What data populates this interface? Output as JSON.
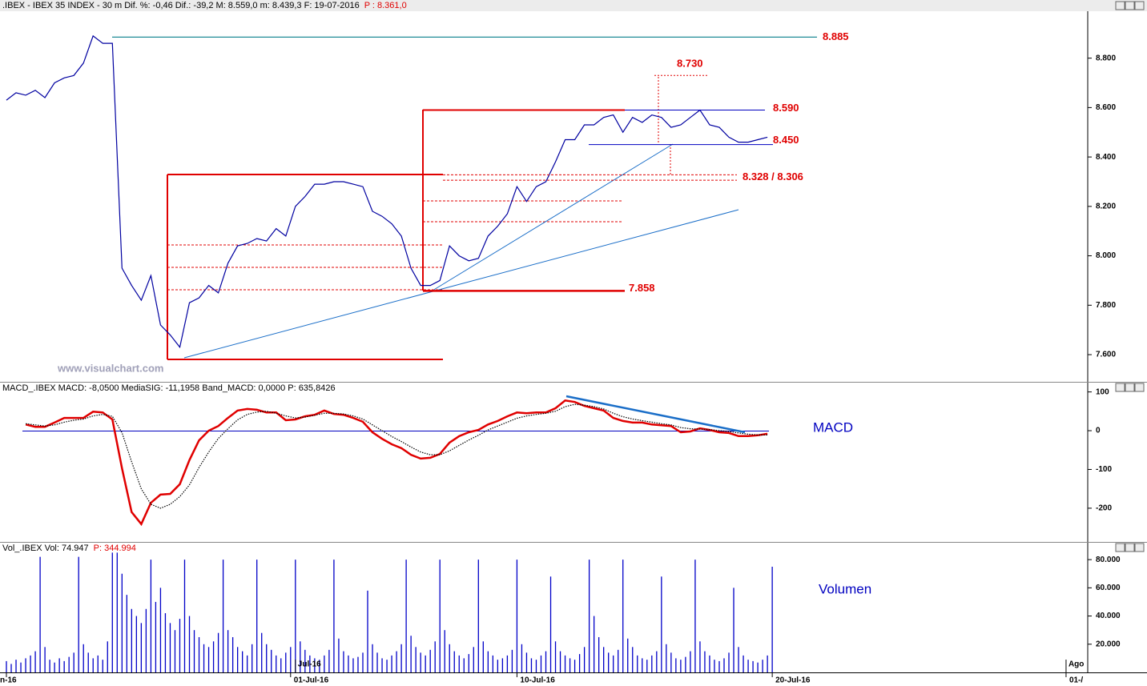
{
  "chart_data": [
    {
      "type": "line",
      "title": ".IBEX - IBEX 35 INDEX -  30 m  Dif. %: -0,46  Dif.: -39,2  M: 8.559,0  m: 8.439,3  F: 19-07-2016",
      "subtitle": "P : 8.361,0",
      "watermark": "www.visualchart.com",
      "xlim": [
        0,
        112
      ],
      "ylim": [
        7490,
        8990
      ],
      "yticks": [
        {
          "value": 8800,
          "label": "8.800"
        },
        {
          "value": 8600,
          "label": "8.600"
        },
        {
          "value": 8400,
          "label": "8.400"
        },
        {
          "value": 8200,
          "label": "8.200"
        },
        {
          "value": 8000,
          "label": "8.000"
        },
        {
          "value": 7800,
          "label": "7.800"
        },
        {
          "value": 7600,
          "label": "7.600"
        }
      ],
      "series": [
        {
          "color": "#0000a0",
          "values": [
            8630,
            8660,
            8650,
            8670,
            8640,
            8700,
            8720,
            8730,
            8780,
            8890,
            8860,
            8860,
            7950,
            7880,
            7820,
            7920,
            7720,
            7680,
            7630,
            7810,
            7830,
            7880,
            7850,
            7970,
            8040,
            8050,
            8070,
            8060,
            8110,
            8080,
            8200,
            8240,
            8290,
            8290,
            8300,
            8300,
            8290,
            8280,
            8180,
            8160,
            8130,
            8080,
            7950,
            7880,
            7880,
            7900,
            8040,
            8000,
            7980,
            7990,
            8080,
            8120,
            8170,
            8280,
            8220,
            8280,
            8300,
            8380,
            8470,
            8470,
            8530,
            8530,
            8560,
            8570,
            8500,
            8560,
            8540,
            8570,
            8560,
            8520,
            8530,
            8560,
            8590,
            8530,
            8520,
            8480,
            8460,
            8460,
            8470,
            8480
          ]
        }
      ],
      "levels": [
        {
          "value": 8885,
          "label": "8.885"
        },
        {
          "value": 8730,
          "label": "8.730"
        },
        {
          "value": 8590,
          "label": "8.590"
        },
        {
          "value": 8450,
          "label": "8.450"
        },
        {
          "value": 7858,
          "label": "7.858"
        }
      ],
      "level_pair": {
        "values": [
          8328,
          8306
        ],
        "label": "8.328 / 8.306"
      }
    },
    {
      "type": "line",
      "title": "MACD_.IBEX MACD: -8,0500  MediaSIG: -11,1958  Band_MACD: 0,0000  P: 635,8426",
      "label": "MACD",
      "xlim": [
        0,
        112
      ],
      "ylim": [
        -287,
        124
      ],
      "yticks": [
        100,
        0,
        -100,
        -200
      ],
      "series": [
        {
          "color": "#e00000",
          "values": [
            null,
            null,
            16,
            10,
            10,
            21,
            33,
            33,
            33,
            49,
            47,
            29,
            -97,
            -210,
            -241,
            -186,
            -165,
            -163,
            -138,
            -76,
            -25,
            0,
            12,
            33,
            52,
            56,
            54,
            47,
            47,
            27,
            29,
            37,
            41,
            52,
            43,
            41,
            33,
            23,
            -4,
            -21,
            -35,
            -45,
            -62,
            -72,
            -70,
            -60,
            -31,
            -14,
            -4,
            2,
            16,
            25,
            37,
            47,
            45,
            47,
            47,
            58,
            78,
            74,
            64,
            58,
            52,
            33,
            25,
            21,
            21,
            16,
            14,
            12,
            -4,
            -2,
            6,
            2,
            -4,
            -6,
            -14,
            -14,
            -12,
            -8
          ]
        },
        {
          "color": "#000000",
          "values": [
            null,
            null,
            18,
            15,
            12,
            15,
            22,
            27,
            30,
            38,
            42,
            37,
            -5,
            -80,
            -150,
            -190,
            -200,
            -190,
            -170,
            -140,
            -95,
            -55,
            -20,
            5,
            28,
            42,
            48,
            50,
            45,
            38,
            33,
            35,
            40,
            45,
            45,
            43,
            38,
            30,
            15,
            0,
            -15,
            -28,
            -42,
            -55,
            -62,
            -62,
            -52,
            -38,
            -24,
            -12,
            2,
            12,
            22,
            32,
            38,
            42,
            45,
            50,
            62,
            68,
            66,
            62,
            56,
            45,
            36,
            30,
            26,
            22,
            18,
            15,
            8,
            5,
            4,
            3,
            0,
            -2,
            -6,
            -9,
            -11,
            -11
          ]
        }
      ]
    },
    {
      "type": "bar",
      "title": "Vol_.IBEX Vol: 74.947",
      "subtitle": "P: 344.994",
      "label": "Volumen",
      "color": "#0000c8",
      "xlim": [
        0,
        224
      ],
      "ylim": [
        0,
        92000
      ],
      "yticks": [
        {
          "value": 80000,
          "label": "80.000"
        },
        {
          "value": 60000,
          "label": "60.000"
        },
        {
          "value": 40000,
          "label": "40.000"
        },
        {
          "value": 20000,
          "label": "20.000"
        }
      ],
      "xticks": [
        {
          "value": 0,
          "label": "n-16"
        },
        {
          "value": 59,
          "label": "01-Jul-16"
        },
        {
          "value": 106,
          "label": "10-Jul-16"
        },
        {
          "value": 159,
          "label": "20-Jul-16"
        },
        {
          "value": 220,
          "label": "01-/"
        }
      ],
      "minor_xticks": [
        {
          "value": 60,
          "label": "Jul-16"
        },
        {
          "value": 220,
          "label": "Ago"
        }
      ],
      "values": [
        8000,
        6000,
        9000,
        7000,
        10000,
        12000,
        15000,
        82000,
        18000,
        9000,
        7000,
        10000,
        8000,
        11000,
        14000,
        82000,
        20000,
        14000,
        10000,
        12000,
        9000,
        22000,
        85000,
        85000,
        70000,
        55000,
        45000,
        40000,
        35000,
        45000,
        80000,
        50000,
        60000,
        42000,
        35000,
        30000,
        38000,
        80000,
        40000,
        30000,
        25000,
        20000,
        18000,
        22000,
        28000,
        80000,
        30000,
        25000,
        18000,
        15000,
        12000,
        20000,
        80000,
        28000,
        20000,
        16000,
        12000,
        10000,
        14000,
        18000,
        80000,
        22000,
        16000,
        12000,
        10000,
        9000,
        12000,
        16000,
        80000,
        24000,
        15000,
        12000,
        10000,
        11000,
        14000,
        58000,
        20000,
        14000,
        10000,
        9000,
        12000,
        15000,
        20000,
        80000,
        26000,
        18000,
        14000,
        12000,
        16000,
        22000,
        80000,
        30000,
        20000,
        15000,
        12000,
        10000,
        13000,
        18000,
        80000,
        22000,
        15000,
        12000,
        9000,
        10000,
        12000,
        16000,
        80000,
        20000,
        14000,
        10000,
        9000,
        12000,
        15000,
        68000,
        22000,
        15000,
        12000,
        10000,
        9000,
        13000,
        18000,
        80000,
        40000,
        25000,
        18000,
        14000,
        12000,
        16000,
        80000,
        24000,
        18000,
        12000,
        10000,
        9000,
        12000,
        15000,
        68000,
        20000,
        14000,
        10000,
        9000,
        11000,
        15000,
        80000,
        22000,
        15000,
        12000,
        9000,
        8000,
        10000,
        14000,
        60000,
        18000,
        12000,
        9000,
        8000,
        7000,
        9000,
        12000,
        74947
      ]
    }
  ]
}
